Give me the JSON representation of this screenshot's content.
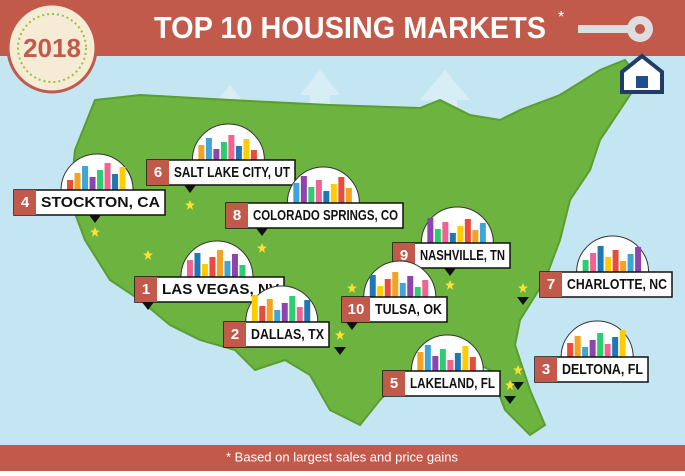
{
  "header": {
    "badge": "2018",
    "title": "TOP 10 HOUSING MARKETS",
    "asterisk": "*"
  },
  "markets": [
    {
      "rank": 4,
      "label": "STOCKTON, CA"
    },
    {
      "rank": 6,
      "label": "SALT LAKE CITY, UT"
    },
    {
      "rank": 8,
      "label": "COLORADO SPRINGS, CO"
    },
    {
      "rank": 9,
      "label": "NASHVILLE, TN"
    },
    {
      "rank": 7,
      "label": "CHARLOTTE, NC"
    },
    {
      "rank": 1,
      "label": "LAS VEGAS, NV"
    },
    {
      "rank": 10,
      "label": "TULSA, OK"
    },
    {
      "rank": 2,
      "label": "DALLAS, TX"
    },
    {
      "rank": 3,
      "label": "DELTONA, FL"
    },
    {
      "rank": 5,
      "label": "LAKELAND, FL"
    }
  ],
  "footnote": "* Based on largest sales and price gains"
}
